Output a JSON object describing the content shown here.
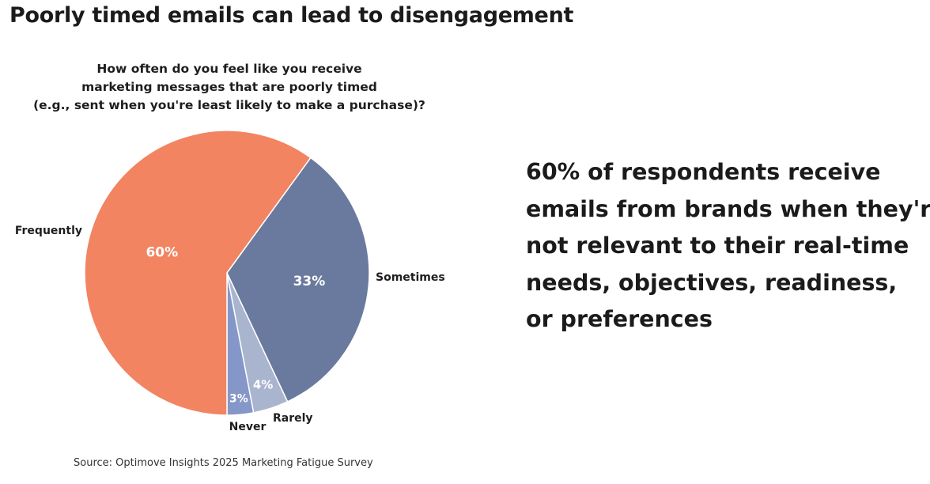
{
  "title": "Poorly timed emails can lead to disengagement",
  "question_lines": [
    "How often do you feel like you receive",
    "marketing messages that are poorly timed",
    "(e.g., sent when you're least likely to make a purchase)?"
  ],
  "chart_data": {
    "type": "pie",
    "title": "How often do you feel like you receive marketing messages that are poorly timed (e.g., sent when you're least likely to make a purchase)?",
    "slices": [
      {
        "label": "Frequently",
        "value": 60,
        "value_label": "60%",
        "color": "#f28462"
      },
      {
        "label": "Sometimes",
        "value": 33,
        "value_label": "33%",
        "color": "#6a7a9e"
      },
      {
        "label": "Rarely",
        "value": 4,
        "value_label": "4%",
        "color": "#a9b5ce"
      },
      {
        "label": "Never",
        "value": 3,
        "value_label": "3%",
        "color": "#8597c8"
      }
    ],
    "start": "bottom-center, clockwise from Never to Sometimes"
  },
  "callout_lines": [
    "60% of respondents receive",
    "emails from brands when they're",
    "not relevant to their real-time",
    "needs, objectives, readiness,",
    "or preferences"
  ],
  "source": "Source: Optimove Insights 2025 Marketing Fatigue Survey"
}
